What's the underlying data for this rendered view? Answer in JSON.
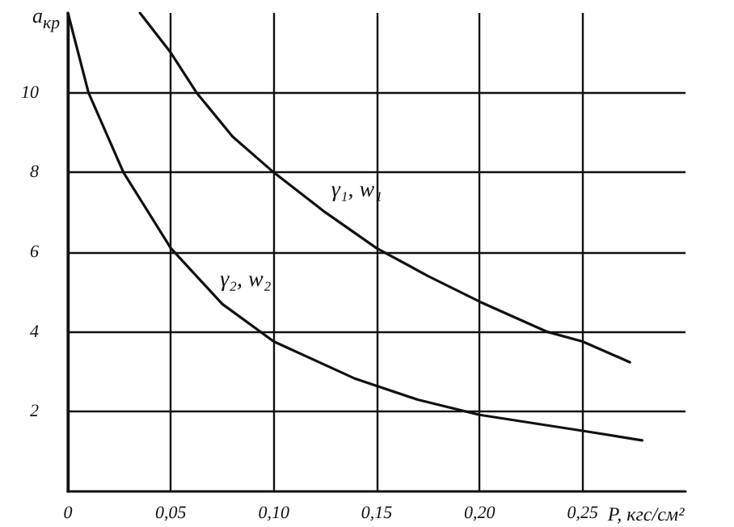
{
  "chart_data": {
    "type": "line",
    "xlabel": "P, кгс/см²",
    "ylabel": "a$_{кр}$",
    "xlim": [
      0,
      0.3
    ],
    "ylim": [
      0,
      12
    ],
    "xticks": [
      {
        "value": 0,
        "label": "0"
      },
      {
        "value": 0.05,
        "label": "0,05"
      },
      {
        "value": 0.1,
        "label": "0,10"
      },
      {
        "value": 0.15,
        "label": "0,15"
      },
      {
        "value": 0.2,
        "label": "0,20"
      },
      {
        "value": 0.25,
        "label": "0,25"
      }
    ],
    "yticks": [
      2,
      4,
      6,
      8,
      10
    ],
    "grid": true,
    "marker": "none",
    "line_style": "solid",
    "series": [
      {
        "name": "γ₁, w₁",
        "color": "#111111",
        "x": [
          0.035,
          0.05,
          0.0625,
          0.08,
          0.1,
          0.125,
          0.15,
          0.175,
          0.2,
          0.233,
          0.25,
          0.273
        ],
        "values": [
          12,
          11,
          10,
          8.9,
          8,
          7,
          6.1,
          5.4,
          4.76,
          4,
          3.76,
          3.24
        ]
      },
      {
        "name": "γ₂, w₂",
        "color": "#111111",
        "x": [
          0,
          0.01,
          0.027,
          0.05,
          0.075,
          0.1,
          0.139,
          0.17,
          0.2,
          0.25,
          0.279
        ],
        "values": [
          12,
          10,
          8,
          6.1,
          4.7,
          3.76,
          2.84,
          2.3,
          1.92,
          1.52,
          1.28
        ]
      }
    ]
  }
}
